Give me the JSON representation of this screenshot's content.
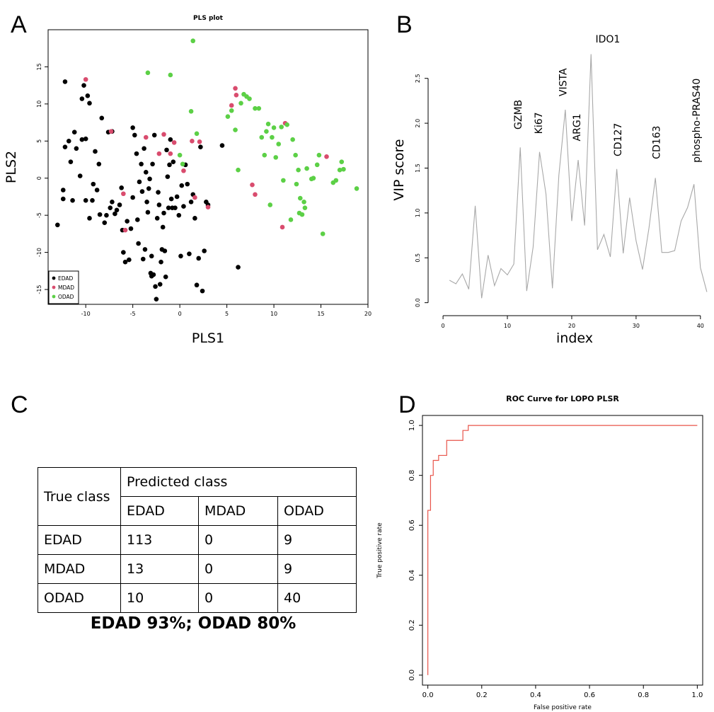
{
  "panels": {
    "a": "A",
    "b": "B",
    "c": "C",
    "d": "D"
  },
  "chart_data": [
    {
      "type": "scatter",
      "title": "PLS  plot",
      "xlabel": "PLS1",
      "ylabel": "PLS2",
      "xlim": [
        -14,
        20
      ],
      "ylim": [
        -17,
        20
      ],
      "xticks": [
        -10,
        -5,
        0,
        5,
        10,
        15,
        20
      ],
      "yticks": [
        -15,
        -10,
        -5,
        0,
        5,
        10,
        15
      ],
      "legend_position": "bottom-left",
      "series": [
        {
          "name": "EDAD",
          "color": "#000000",
          "points": [
            [
              -13,
              -6.3
            ],
            [
              -12.4,
              -1.6
            ],
            [
              -12.4,
              -2.8
            ],
            [
              -12.2,
              13
            ],
            [
              -12.2,
              4.2
            ],
            [
              -11.8,
              5
            ],
            [
              -11.6,
              2.2
            ],
            [
              -11.4,
              -3
            ],
            [
              -11.2,
              6.2
            ],
            [
              -11,
              4
            ],
            [
              -10.6,
              0.3
            ],
            [
              -10.4,
              5.2
            ],
            [
              -10.4,
              10.7
            ],
            [
              -10.2,
              12.5
            ],
            [
              -10,
              -3
            ],
            [
              -10,
              5.3
            ],
            [
              -9.8,
              11.1
            ],
            [
              -9.6,
              10.1
            ],
            [
              -9.6,
              -5.4
            ],
            [
              -9.3,
              -3
            ],
            [
              -9.2,
              -0.8
            ],
            [
              -9,
              3.6
            ],
            [
              -8.8,
              -1.6
            ],
            [
              -8.6,
              1.9
            ],
            [
              -8.5,
              -4.9
            ],
            [
              -8.3,
              8.1
            ],
            [
              -8,
              -6
            ],
            [
              -7.8,
              -5
            ],
            [
              -7.6,
              6.2
            ],
            [
              -7.4,
              -4
            ],
            [
              -7.2,
              -3.2
            ],
            [
              -7.2,
              6.3
            ],
            [
              -6.9,
              -4.8
            ],
            [
              -6.7,
              -4.3
            ],
            [
              -6.4,
              -3.6
            ],
            [
              -6.2,
              -1.3
            ],
            [
              -6.1,
              -7
            ],
            [
              -6,
              -10
            ],
            [
              -5.8,
              -11.3
            ],
            [
              -5.6,
              -5.8
            ],
            [
              -5.4,
              -11
            ],
            [
              -5.2,
              -6.8
            ],
            [
              -5,
              -2.6
            ],
            [
              -5,
              6.8
            ],
            [
              -4.8,
              5.8
            ],
            [
              -4.6,
              3.3
            ],
            [
              -4.5,
              -5.6
            ],
            [
              -4.4,
              -8.8
            ],
            [
              -4.3,
              -0.5
            ],
            [
              -4.1,
              1.9
            ],
            [
              -4,
              -1.8
            ],
            [
              -3.9,
              -10.9
            ],
            [
              -3.8,
              4
            ],
            [
              -3.7,
              -9.6
            ],
            [
              -3.6,
              0.8
            ],
            [
              -3.5,
              -3.2
            ],
            [
              -3.4,
              -4.6
            ],
            [
              -3.3,
              -1.4
            ],
            [
              -3.2,
              -0.1
            ],
            [
              -3.1,
              -12.8
            ],
            [
              -3,
              -13.2
            ],
            [
              -3,
              -10.5
            ],
            [
              -2.9,
              1.9
            ],
            [
              -2.8,
              -13
            ],
            [
              -2.7,
              5.8
            ],
            [
              -2.6,
              -14.6
            ],
            [
              -2.5,
              -16.3
            ],
            [
              -2.4,
              -5.4
            ],
            [
              -2.3,
              -1.9
            ],
            [
              -2.2,
              -3.6
            ],
            [
              -2.1,
              -14.3
            ],
            [
              -2,
              -11.3
            ],
            [
              -1.9,
              -9.6
            ],
            [
              -1.8,
              -6.6
            ],
            [
              -1.7,
              -4.7
            ],
            [
              -1.6,
              -9.8
            ],
            [
              -1.5,
              -13.3
            ],
            [
              -1.4,
              3.8
            ],
            [
              -1.3,
              0.2
            ],
            [
              -1.2,
              -4
            ],
            [
              -1.1,
              1.8
            ],
            [
              -1,
              5.2
            ],
            [
              -0.9,
              -2.8
            ],
            [
              -0.8,
              -4
            ],
            [
              -0.7,
              2.2
            ],
            [
              -0.5,
              -4
            ],
            [
              -0.3,
              -2.5
            ],
            [
              -0.1,
              -5
            ],
            [
              0.1,
              -10.5
            ],
            [
              0.2,
              -1
            ],
            [
              0.4,
              -3.8
            ],
            [
              0.6,
              1.8
            ],
            [
              0.8,
              -0.8
            ],
            [
              1,
              -10.2
            ],
            [
              1.2,
              -3.2
            ],
            [
              1.4,
              -2.2
            ],
            [
              1.6,
              -5.4
            ],
            [
              1.8,
              -14.4
            ],
            [
              2,
              -10.8
            ],
            [
              2.2,
              4.2
            ],
            [
              2.4,
              -15.2
            ],
            [
              2.6,
              -9.8
            ],
            [
              2.8,
              -3.2
            ],
            [
              3,
              -3.6
            ],
            [
              4.5,
              4.4
            ],
            [
              6.2,
              -12
            ]
          ]
        },
        {
          "name": "MDAD",
          "color": "#d94c6e",
          "points": [
            [
              -10,
              13.3
            ],
            [
              -7.3,
              6.3
            ],
            [
              -6,
              -2.1
            ],
            [
              -5.8,
              -7
            ],
            [
              -3.6,
              5.5
            ],
            [
              -2.2,
              3.3
            ],
            [
              -1.7,
              5.9
            ],
            [
              -1,
              3.3
            ],
            [
              -0.6,
              4.8
            ],
            [
              0.4,
              1
            ],
            [
              1.3,
              5
            ],
            [
              1.6,
              -2.6
            ],
            [
              2.1,
              4.9
            ],
            [
              3,
              -3.9
            ],
            [
              5.5,
              9.8
            ],
            [
              5.9,
              12.1
            ],
            [
              6,
              11.2
            ],
            [
              7.7,
              -0.9
            ],
            [
              8,
              -2.2
            ],
            [
              10.9,
              -6.6
            ],
            [
              11.2,
              7.4
            ],
            [
              15.6,
              2.9
            ]
          ]
        },
        {
          "name": "ODAD",
          "color": "#5cd046",
          "points": [
            [
              -3.4,
              14.2
            ],
            [
              -1,
              13.9
            ],
            [
              0,
              3.1
            ],
            [
              0.3,
              1.9
            ],
            [
              1.2,
              9
            ],
            [
              1.4,
              18.5
            ],
            [
              1.8,
              6
            ],
            [
              5.1,
              8.3
            ],
            [
              5.5,
              9.1
            ],
            [
              5.9,
              6.5
            ],
            [
              6.2,
              1.1
            ],
            [
              6.5,
              10.1
            ],
            [
              6.8,
              11.3
            ],
            [
              7.1,
              11
            ],
            [
              7.4,
              10.7
            ],
            [
              8,
              9.4
            ],
            [
              8.4,
              9.4
            ],
            [
              8.7,
              5.5
            ],
            [
              9,
              3.1
            ],
            [
              9.2,
              6.3
            ],
            [
              9.4,
              7.3
            ],
            [
              9.6,
              -3.6
            ],
            [
              9.8,
              5.5
            ],
            [
              10,
              6.8
            ],
            [
              10.2,
              2.8
            ],
            [
              10.5,
              4.6
            ],
            [
              10.8,
              6.9
            ],
            [
              11,
              -0.3
            ],
            [
              11.4,
              7.2
            ],
            [
              11.8,
              -5.6
            ],
            [
              12,
              5.2
            ],
            [
              12.3,
              3.1
            ],
            [
              12.4,
              -0.8
            ],
            [
              12.6,
              1.1
            ],
            [
              12.7,
              -4.7
            ],
            [
              12.8,
              -2.7
            ],
            [
              13,
              -4.9
            ],
            [
              13.2,
              -3.2
            ],
            [
              13.3,
              -4
            ],
            [
              13.5,
              1.3
            ],
            [
              14,
              -0.1
            ],
            [
              14.2,
              0
            ],
            [
              14.6,
              1.8
            ],
            [
              14.8,
              3.1
            ],
            [
              15.2,
              -7.5
            ],
            [
              16.3,
              -0.6
            ],
            [
              16.6,
              -0.3
            ],
            [
              17,
              1.1
            ],
            [
              17.2,
              2.2
            ],
            [
              17.4,
              1.2
            ],
            [
              18.8,
              -1.4
            ]
          ]
        }
      ]
    },
    {
      "type": "line",
      "xlabel": "index",
      "ylabel": "VIP score",
      "xlim": [
        -1,
        42
      ],
      "ylim": [
        -0.05,
        2.9
      ],
      "xticks": [
        0,
        10,
        20,
        30,
        40
      ],
      "yticks": [
        0.0,
        0.5,
        1.0,
        1.5,
        2.0,
        2.5
      ],
      "color": "#a8a8a8",
      "x": [
        1,
        2,
        3,
        4,
        5,
        6,
        7,
        8,
        9,
        10,
        11,
        12,
        13,
        14,
        15,
        16,
        17,
        18,
        19,
        20,
        21,
        22,
        23,
        24,
        25,
        26,
        27,
        28,
        29,
        30,
        31,
        32,
        33,
        34,
        35,
        36,
        37,
        38,
        39,
        40,
        41
      ],
      "y": [
        0.25,
        0.21,
        0.32,
        0.15,
        1.08,
        0.05,
        0.53,
        0.19,
        0.38,
        0.31,
        0.43,
        1.73,
        0.13,
        0.62,
        1.68,
        1.21,
        0.16,
        1.42,
        2.15,
        0.91,
        1.59,
        0.86,
        2.77,
        0.59,
        0.76,
        0.51,
        1.49,
        0.55,
        1.17,
        0.69,
        0.37,
        0.83,
        1.39,
        0.56,
        0.56,
        0.58,
        0.91,
        1.06,
        1.32,
        0.39,
        0.12
      ],
      "annotations": [
        {
          "text": "GZMB",
          "x": 12.2,
          "y": 1.93
        },
        {
          "text": "Ki67",
          "x": 15.4,
          "y": 1.88
        },
        {
          "text": "VISTA",
          "x": 19.2,
          "y": 2.3
        },
        {
          "text": "ARG1",
          "x": 21.3,
          "y": 1.8
        },
        {
          "text": "IDO1",
          "x": 25.6,
          "y": 2.9
        },
        {
          "text": "CD127",
          "x": 27.7,
          "y": 1.63
        },
        {
          "text": "CD163",
          "x": 33.7,
          "y": 1.6
        },
        {
          "text": "phospho-PRAS40",
          "x": 39.9,
          "y": 1.56
        }
      ]
    },
    {
      "type": "table",
      "header_row_label": "True class",
      "group_label": "Predicted class",
      "columns": [
        "EDAD",
        "MDAD",
        "ODAD"
      ],
      "rows": [
        {
          "label": "EDAD",
          "values": [
            "113",
            "0",
            "9"
          ]
        },
        {
          "label": "MDAD",
          "values": [
            "13",
            "0",
            "9"
          ]
        },
        {
          "label": "ODAD",
          "values": [
            "10",
            "0",
            "40"
          ]
        }
      ],
      "summary": "EDAD 93%; ODAD 80%"
    },
    {
      "type": "line",
      "title": "ROC Curve for LOPO PLSR",
      "xlabel": "False positive rate",
      "ylabel": "True positive rate",
      "xlim": [
        -0.02,
        1.02
      ],
      "ylim": [
        -0.04,
        1.04
      ],
      "xticks": [
        "0.0",
        "0.2",
        "0.4",
        "0.6",
        "0.8",
        "1.0"
      ],
      "yticks": [
        "0.0",
        "0.2",
        "0.4",
        "0.6",
        "0.8",
        "1.0"
      ],
      "color": "#e8544a",
      "x": [
        0,
        0,
        0.01,
        0.01,
        0.02,
        0.02,
        0.04,
        0.04,
        0.07,
        0.07,
        0.13,
        0.13,
        0.15,
        0.15,
        1.0
      ],
      "y": [
        0,
        0.66,
        0.66,
        0.8,
        0.8,
        0.86,
        0.86,
        0.88,
        0.88,
        0.94,
        0.94,
        0.98,
        0.98,
        1.0,
        1.0
      ]
    }
  ]
}
